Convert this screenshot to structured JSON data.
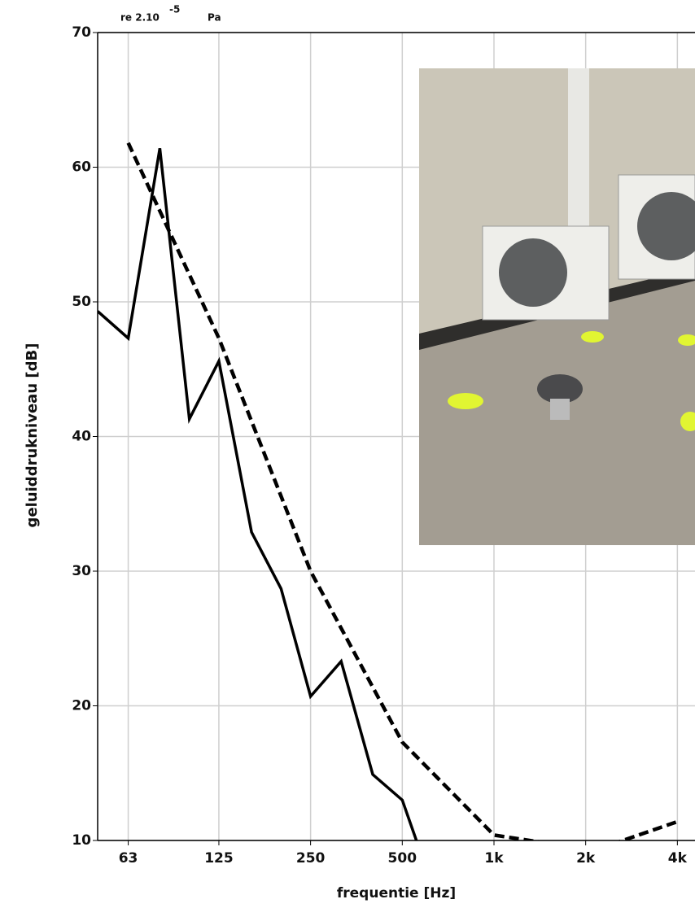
{
  "chart_data": {
    "type": "line",
    "annotation": {
      "text": "re 2.10",
      "superscript": "-5",
      "unit": "Pa"
    },
    "x_label": "frequentie [Hz]",
    "y_label": "geluiddrukniveau [dB]",
    "xscale": "log",
    "grid": true,
    "xlim": [
      50,
      4570
    ],
    "ylim": [
      10,
      70
    ],
    "xticks": [
      63,
      125,
      250,
      500,
      {
        "value": 1000,
        "label": "1k"
      },
      {
        "value": 2000,
        "label": "2k"
      },
      {
        "value": 4000,
        "label": "4k"
      }
    ],
    "yticks": [
      10,
      20,
      30,
      40,
      50,
      60,
      70
    ],
    "series": [
      {
        "color": "#000000",
        "dash": false,
        "x": [
          50,
          63,
          80,
          100,
          125,
          160,
          200,
          250,
          315,
          400,
          500,
          630
        ],
        "values": [
          49.3,
          47.3,
          61.4,
          41.3,
          45.6,
          32.9,
          28.7,
          20.7,
          23.3,
          14.9,
          13.0,
          6.5
        ]
      },
      {
        "color": "#000000",
        "dash": true,
        "x": [
          63,
          125,
          250,
          500,
          1000,
          1600,
          2500,
          4000
        ],
        "values": [
          61.8,
          47.3,
          30.0,
          17.3,
          10.4,
          9.7,
          9.8,
          11.4
        ]
      }
    ]
  }
}
